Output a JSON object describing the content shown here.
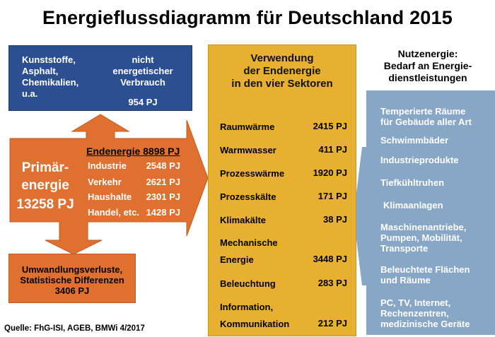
{
  "title": "Energieflussdiagramm für Deutschland 2015",
  "non_energy": {
    "left_lines": [
      "Kunststoffe,",
      "Asphalt,",
      "Chemikalien,",
      "u.a."
    ],
    "right_lines": [
      "nicht",
      "energetischer",
      "Verbrauch"
    ],
    "value": "954 PJ"
  },
  "primary": {
    "label_lines": [
      "Primär-",
      "energie"
    ],
    "value": "13258 PJ"
  },
  "end_energy": {
    "title": "Endenergie 8898 PJ",
    "sectors": [
      {
        "name": "Industrie",
        "value": "2548 PJ"
      },
      {
        "name": "Verkehr",
        "value": "2621 PJ"
      },
      {
        "name": "Haushalte",
        "value": "2301 PJ"
      },
      {
        "name": "Handel, etc.",
        "value": "1428 PJ"
      }
    ]
  },
  "losses": {
    "lines": [
      "Umwandlungsverluste,",
      "Statistische Differenzen",
      "3406 PJ"
    ]
  },
  "source": "Quelle: FhG-ISI, AGEB, BMWi 4/2017",
  "usage": {
    "title_lines": [
      "Verwendung",
      "der Endenergie",
      "in den vier Sektoren"
    ],
    "items": [
      {
        "label": "Raumwärme",
        "value": "2415 PJ"
      },
      {
        "label": "Warmwasser",
        "value": "411 PJ"
      },
      {
        "label": "Prozesswärme",
        "value": "1920 PJ"
      },
      {
        "label": "Prozesskälte",
        "value": "171 PJ"
      },
      {
        "label": "Klimakälte",
        "value": "38 PJ"
      },
      {
        "label_lines": [
          "Mechanische",
          "Energie"
        ],
        "value": "3448 PJ"
      },
      {
        "label": "Beleuchtung",
        "value": "283 PJ"
      },
      {
        "label_lines": [
          "Information,",
          "Kommunikation"
        ],
        "value": "212 PJ"
      }
    ]
  },
  "useful_energy": {
    "title_lines": [
      "Nutzenergie:",
      "Bedarf an Energie-",
      "dienstleistungen"
    ],
    "items": [
      {
        "lines": [
          "Temperierte Räume",
          "für Gebäude aller Art"
        ]
      },
      {
        "lines": [
          "Schwimmbäder"
        ]
      },
      {
        "lines": [
          "Industrieprodukte"
        ]
      },
      {
        "lines": [
          "Tiefkühltruhen"
        ]
      },
      {
        "lines": [
          "Klimaanlagen"
        ]
      },
      {
        "lines": [
          "Maschinenantriebe,",
          "Pumpen, Mobilität,",
          "Transporte"
        ]
      },
      {
        "lines": [
          "Beleuchtete Flächen",
          "und Räume"
        ]
      },
      {
        "lines": [
          "PC, TV, Internet,",
          "Rechenzentren,",
          "medizinische Geräte"
        ]
      }
    ]
  },
  "colors": {
    "blue": "#2c4f92",
    "orange": "#e07030",
    "yellow": "#e8b030",
    "steel_blue": "#88a6c6"
  }
}
